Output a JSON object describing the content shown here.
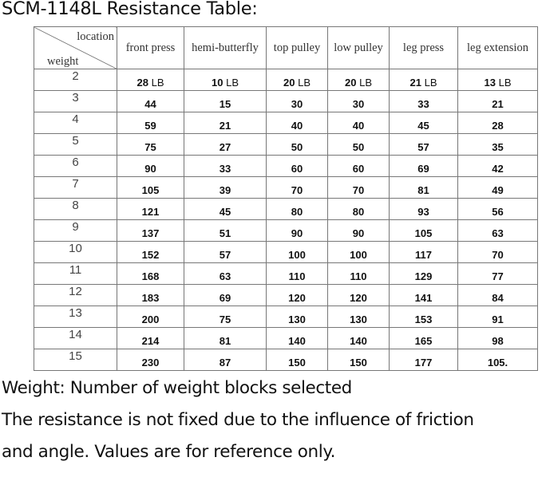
{
  "title": "SCM-1148L Resistance Table:",
  "table": {
    "corner_top": "location",
    "corner_bottom": "weight",
    "columns": [
      "front press",
      "hemi-butterfly",
      "top pulley",
      "low pulley",
      "leg press",
      "leg extension"
    ],
    "unit": "LB",
    "rows": [
      {
        "weight": "2",
        "values": [
          "28",
          "10",
          "20",
          "20",
          "21",
          "13"
        ]
      },
      {
        "weight": "3",
        "values": [
          "44",
          "15",
          "30",
          "30",
          "33",
          "21"
        ]
      },
      {
        "weight": "4",
        "values": [
          "59",
          "21",
          "40",
          "40",
          "45",
          "28"
        ]
      },
      {
        "weight": "5",
        "values": [
          "75",
          "27",
          "50",
          "50",
          "57",
          "35"
        ]
      },
      {
        "weight": "6",
        "values": [
          "90",
          "33",
          "60",
          "60",
          "69",
          "42"
        ]
      },
      {
        "weight": "7",
        "values": [
          "105",
          "39",
          "70",
          "70",
          "81",
          "49"
        ]
      },
      {
        "weight": "8",
        "values": [
          "121",
          "45",
          "80",
          "80",
          "93",
          "56"
        ]
      },
      {
        "weight": "9",
        "values": [
          "137",
          "51",
          "90",
          "90",
          "105",
          "63"
        ]
      },
      {
        "weight": "10",
        "values": [
          "152",
          "57",
          "100",
          "100",
          "117",
          "70"
        ]
      },
      {
        "weight": "11",
        "values": [
          "168",
          "63",
          "110",
          "110",
          "129",
          "77"
        ]
      },
      {
        "weight": "12",
        "values": [
          "183",
          "69",
          "120",
          "120",
          "141",
          "84"
        ]
      },
      {
        "weight": "13",
        "values": [
          "200",
          "75",
          "130",
          "130",
          "153",
          "91"
        ]
      },
      {
        "weight": "14",
        "values": [
          "214",
          "81",
          "140",
          "140",
          "165",
          "98"
        ]
      },
      {
        "weight": "15",
        "values": [
          "230",
          "87",
          "150",
          "150",
          "177",
          "105."
        ]
      }
    ]
  },
  "notes": [
    "Weight: Number of weight blocks selected",
    "The resistance is not fixed due to the influence of friction",
    "and angle. Values are for reference only."
  ]
}
